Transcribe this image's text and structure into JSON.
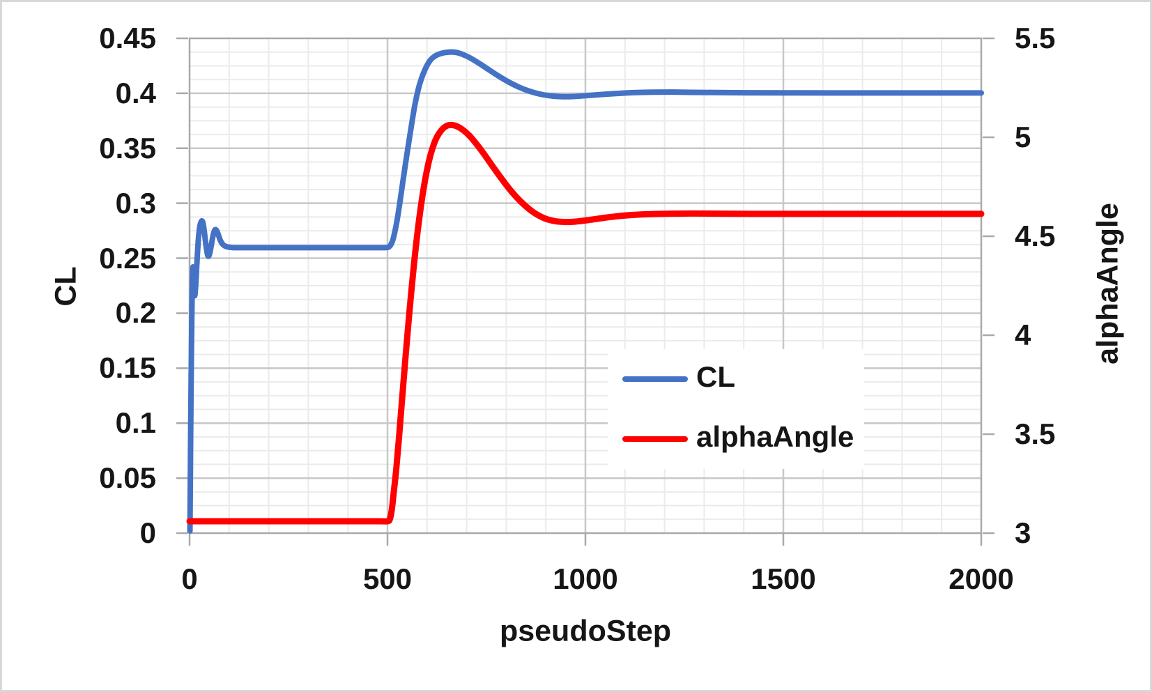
{
  "chart_data": {
    "type": "line",
    "title": "",
    "xlabel": "pseudoStep",
    "ylabel_left": "CL",
    "ylabel_right": "alphaAngle",
    "x_axis": {
      "min": 0,
      "max": 2000,
      "major_tick_step": 500,
      "minor_tick_step": 100,
      "tick_labels": [
        "0",
        "500",
        "1000",
        "1500",
        "2000"
      ]
    },
    "y_axis_left": {
      "min": 0,
      "max": 0.45,
      "major_tick_step": 0.05,
      "minor_tick_step": 0.0125,
      "tick_labels": [
        "0",
        "0.05",
        "0.1",
        "0.15",
        "0.2",
        "0.25",
        "0.3",
        "0.35",
        "0.4",
        "0.45"
      ]
    },
    "y_axis_right": {
      "min": 3,
      "max": 5.5,
      "major_tick_step": 0.5,
      "tick_labels": [
        "3",
        "3.5",
        "4",
        "4.5",
        "5",
        "5.5"
      ]
    },
    "grid": {
      "minor_on": true,
      "major_color": "#c8c8c8",
      "minor_color": "#ebebeb",
      "axis_color": "#a9a9a9"
    },
    "legend": {
      "position": "center-right",
      "background": "#ffffff",
      "items": [
        {
          "label": "CL",
          "color": "#4472C4"
        },
        {
          "label": "alphaAngle",
          "color": "#FF0000"
        }
      ]
    },
    "series": [
      {
        "name": "CL",
        "axis": "left",
        "color": "#4472C4",
        "stroke_width": 8,
        "points": [
          [
            1,
            0.002
          ],
          [
            2,
            0.05
          ],
          [
            3,
            0.1
          ],
          [
            4,
            0.14
          ],
          [
            5,
            0.175
          ],
          [
            6,
            0.205
          ],
          [
            7,
            0.228
          ],
          [
            8,
            0.239
          ],
          [
            9,
            0.242
          ],
          [
            10,
            0.236
          ],
          [
            11,
            0.227
          ],
          [
            12,
            0.219
          ],
          [
            13,
            0.216
          ],
          [
            14,
            0.218
          ],
          [
            16,
            0.228
          ],
          [
            18,
            0.242
          ],
          [
            20,
            0.255
          ],
          [
            22,
            0.266
          ],
          [
            24,
            0.274
          ],
          [
            26,
            0.279
          ],
          [
            28,
            0.282
          ],
          [
            31,
            0.284
          ],
          [
            34,
            0.282
          ],
          [
            37,
            0.275
          ],
          [
            40,
            0.266
          ],
          [
            43,
            0.258
          ],
          [
            46,
            0.2525
          ],
          [
            49,
            0.2522
          ],
          [
            52,
            0.256
          ],
          [
            55,
            0.262
          ],
          [
            58,
            0.268
          ],
          [
            61,
            0.273
          ],
          [
            64,
            0.2757
          ],
          [
            67,
            0.2758
          ],
          [
            70,
            0.274
          ],
          [
            74,
            0.27
          ],
          [
            78,
            0.266
          ],
          [
            83,
            0.263
          ],
          [
            89,
            0.2612
          ],
          [
            96,
            0.2603
          ],
          [
            106,
            0.2598
          ],
          [
            120,
            0.2596
          ],
          [
            140,
            0.2596
          ],
          [
            170,
            0.2596
          ],
          [
            220,
            0.2596
          ],
          [
            280,
            0.2596
          ],
          [
            350,
            0.2596
          ],
          [
            420,
            0.2596
          ],
          [
            480,
            0.2596
          ],
          [
            500,
            0.2598
          ],
          [
            504,
            0.2605
          ],
          [
            508,
            0.262
          ],
          [
            513,
            0.266
          ],
          [
            518,
            0.273
          ],
          [
            524,
            0.284
          ],
          [
            531,
            0.3
          ],
          [
            539,
            0.32
          ],
          [
            548,
            0.342
          ],
          [
            558,
            0.365
          ],
          [
            569,
            0.389
          ],
          [
            581,
            0.408
          ],
          [
            594,
            0.421
          ],
          [
            608,
            0.43
          ],
          [
            623,
            0.4345
          ],
          [
            640,
            0.4367
          ],
          [
            656,
            0.4375
          ],
          [
            670,
            0.4374
          ],
          [
            684,
            0.4362
          ],
          [
            700,
            0.4338
          ],
          [
            717,
            0.4305
          ],
          [
            736,
            0.4262
          ],
          [
            757,
            0.4212
          ],
          [
            780,
            0.4158
          ],
          [
            805,
            0.4105
          ],
          [
            831,
            0.4058
          ],
          [
            858,
            0.402
          ],
          [
            885,
            0.3993
          ],
          [
            912,
            0.3977
          ],
          [
            938,
            0.397
          ],
          [
            964,
            0.397
          ],
          [
            992,
            0.3976
          ],
          [
            1022,
            0.3984
          ],
          [
            1056,
            0.3993
          ],
          [
            1092,
            0.4001
          ],
          [
            1130,
            0.4007
          ],
          [
            1170,
            0.401
          ],
          [
            1215,
            0.4011
          ],
          [
            1265,
            0.4009
          ],
          [
            1330,
            0.4007
          ],
          [
            1405,
            0.4005
          ],
          [
            1500,
            0.4004
          ],
          [
            1630,
            0.4003
          ],
          [
            1800,
            0.4003
          ],
          [
            2000,
            0.4003
          ]
        ]
      },
      {
        "name": "alphaAngle",
        "axis": "right",
        "color": "#FF0000",
        "stroke_width": 9,
        "points": [
          [
            0,
            3.06
          ],
          [
            100,
            3.06
          ],
          [
            250,
            3.06
          ],
          [
            400,
            3.06
          ],
          [
            480,
            3.06
          ],
          [
            500,
            3.06
          ],
          [
            506,
            3.07
          ],
          [
            511,
            3.12
          ],
          [
            516,
            3.21
          ],
          [
            522,
            3.32
          ],
          [
            529,
            3.48
          ],
          [
            537,
            3.68
          ],
          [
            546,
            3.9
          ],
          [
            556,
            4.13
          ],
          [
            567,
            4.36
          ],
          [
            579,
            4.57
          ],
          [
            592,
            4.75
          ],
          [
            606,
            4.89
          ],
          [
            621,
            4.985
          ],
          [
            636,
            5.035
          ],
          [
            650,
            5.058
          ],
          [
            663,
            5.062
          ],
          [
            676,
            5.055
          ],
          [
            690,
            5.038
          ],
          [
            706,
            5.01
          ],
          [
            724,
            4.968
          ],
          [
            744,
            4.915
          ],
          [
            766,
            4.852
          ],
          [
            790,
            4.786
          ],
          [
            815,
            4.722
          ],
          [
            841,
            4.667
          ],
          [
            868,
            4.622
          ],
          [
            895,
            4.592
          ],
          [
            921,
            4.577
          ],
          [
            947,
            4.572
          ],
          [
            975,
            4.574
          ],
          [
            1005,
            4.581
          ],
          [
            1040,
            4.591
          ],
          [
            1080,
            4.601
          ],
          [
            1120,
            4.608
          ],
          [
            1165,
            4.612
          ],
          [
            1215,
            4.614
          ],
          [
            1270,
            4.615
          ],
          [
            1340,
            4.614
          ],
          [
            1420,
            4.613
          ],
          [
            1520,
            4.613
          ],
          [
            1680,
            4.613
          ],
          [
            1840,
            4.613
          ],
          [
            2000,
            4.613
          ]
        ]
      }
    ]
  }
}
